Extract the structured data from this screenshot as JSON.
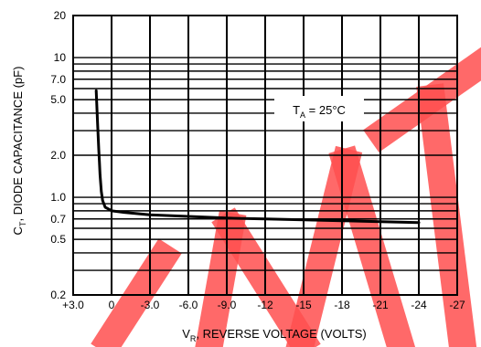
{
  "chart_data": {
    "type": "line",
    "title": "",
    "xlabel": {
      "prefix": "V",
      "sub": "R",
      "rest": ", REVERSE VOLTAGE (VOLTS)"
    },
    "ylabel": {
      "prefix": "C",
      "sub": "T",
      "rest": ", DIODE CAPACITANCE (pF)"
    },
    "annotation": {
      "prefix": "T",
      "sub": "A",
      "rest": " = 25°C"
    },
    "x_ticks": [
      "+3.0",
      "0",
      "-3.0",
      "-6.0",
      "-9.0",
      "-12",
      "-15",
      "-18",
      "-21",
      "-24",
      "-27"
    ],
    "x_tick_values": [
      3,
      0,
      -3,
      -6,
      -9,
      -12,
      -15,
      -18,
      -21,
      -24,
      -27
    ],
    "xlim": [
      3,
      -27
    ],
    "y_scale": "log",
    "ylim": [
      0.2,
      20
    ],
    "y_ticks": [
      "20",
      "10",
      "7.0",
      "5.0",
      "2.0",
      "1.0",
      "0.7",
      "0.5",
      "0.2"
    ],
    "y_tick_values": [
      20,
      10,
      7,
      5,
      2,
      1,
      0.7,
      0.5,
      0.2
    ],
    "y_gridlines": [
      0.2,
      0.3,
      0.4,
      0.5,
      0.6,
      0.7,
      0.8,
      0.9,
      1,
      2,
      3,
      4,
      5,
      6,
      7,
      8,
      9,
      10,
      20
    ],
    "grid": true,
    "series": [
      {
        "x": [
          1.2,
          1.1,
          1.0,
          0.95,
          0.9,
          0.8,
          0.7,
          0.5,
          0.2,
          0,
          -1,
          -3,
          -6,
          -9,
          -12,
          -15,
          -18,
          -21,
          -24
        ],
        "y": [
          5.8,
          3.5,
          2.2,
          1.8,
          1.45,
          1.1,
          0.95,
          0.85,
          0.82,
          0.8,
          0.78,
          0.75,
          0.73,
          0.71,
          0.7,
          0.69,
          0.68,
          0.67,
          0.66
        ]
      }
    ],
    "watermark": "PRELIMINARY"
  }
}
